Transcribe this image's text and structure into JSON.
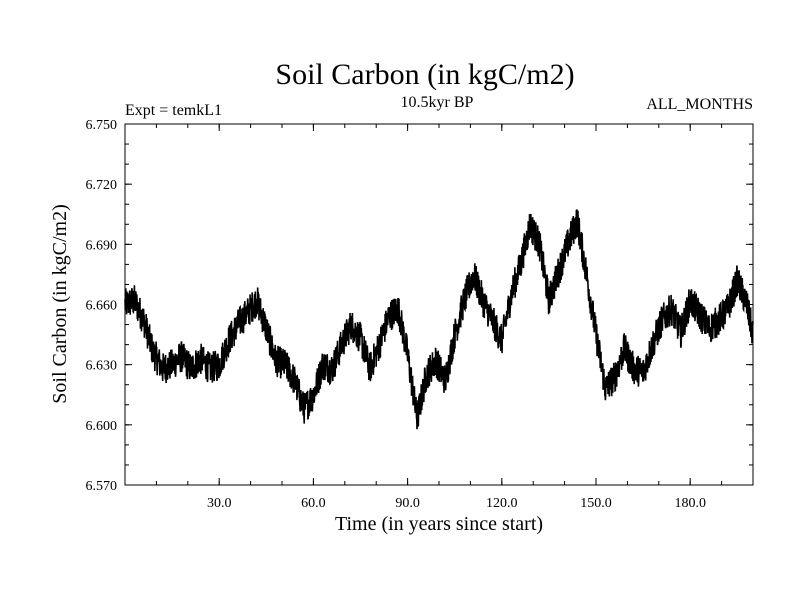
{
  "chart_data": {
    "type": "line",
    "title": "Soil Carbon (in kgC/m2)",
    "subtitle_left": "Expt = temkL1",
    "subtitle_center": "10.5kyr BP",
    "subtitle_right": "ALL_MONTHS",
    "xlabel": "Time (in years since start)",
    "ylabel": "Soil Carbon (in kgC/m2)",
    "xlim": [
      0,
      200
    ],
    "ylim": [
      6.57,
      6.75
    ],
    "xticks": [
      30,
      60,
      90,
      120,
      150,
      180
    ],
    "xtick_labels": [
      "30.0",
      "60.0",
      "90.0",
      "120.0",
      "150.0",
      "180.0"
    ],
    "yticks": [
      6.57,
      6.6,
      6.63,
      6.66,
      6.69,
      6.72,
      6.75
    ],
    "ytick_labels": [
      "6.570",
      "6.600",
      "6.630",
      "6.660",
      "6.690",
      "6.720",
      "6.750"
    ],
    "line_color": "#000000",
    "monthly_noise_amplitude": 0.008,
    "series": [
      {
        "name": "Soil Carbon",
        "x": [
          0,
          3,
          6,
          9,
          12,
          15,
          18,
          21,
          24,
          27,
          30,
          33,
          36,
          39,
          42,
          45,
          48,
          51,
          54,
          57,
          60,
          63,
          66,
          69,
          72,
          75,
          78,
          81,
          84,
          87,
          90,
          93,
          96,
          99,
          102,
          105,
          108,
          111,
          114,
          117,
          120,
          123,
          126,
          129,
          132,
          135,
          138,
          141,
          144,
          147,
          150,
          153,
          156,
          159,
          162,
          165,
          168,
          171,
          174,
          177,
          180,
          183,
          186,
          189,
          192,
          195,
          198,
          200
        ],
        "values": [
          6.66,
          6.662,
          6.652,
          6.636,
          6.628,
          6.63,
          6.634,
          6.628,
          6.633,
          6.628,
          6.63,
          6.642,
          6.65,
          6.656,
          6.662,
          6.648,
          6.632,
          6.63,
          6.622,
          6.608,
          6.615,
          6.63,
          6.628,
          6.64,
          6.65,
          6.643,
          6.628,
          6.64,
          6.654,
          6.658,
          6.635,
          6.603,
          6.625,
          6.632,
          6.622,
          6.645,
          6.662,
          6.675,
          6.662,
          6.652,
          6.642,
          6.665,
          6.68,
          6.7,
          6.69,
          6.662,
          6.676,
          6.69,
          6.702,
          6.675,
          6.645,
          6.618,
          6.624,
          6.638,
          6.628,
          6.626,
          6.64,
          6.652,
          6.658,
          6.646,
          6.662,
          6.655,
          6.648,
          6.652,
          6.658,
          6.672,
          6.66,
          6.645
        ]
      }
    ]
  }
}
